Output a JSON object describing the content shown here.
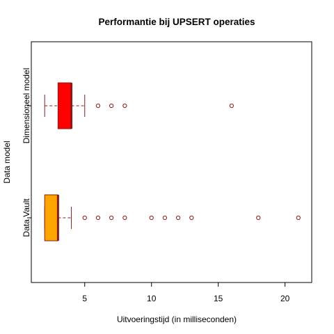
{
  "chart_data": {
    "type": "boxplot",
    "orientation": "horizontal",
    "title": "Performantie bij UPSERT operaties",
    "xlabel": "Uitvoeringstijd (in milliseconden)",
    "ylabel": "Data model",
    "xlim": [
      1,
      22
    ],
    "x_ticks": [
      5,
      10,
      15,
      20
    ],
    "grid": false,
    "series": [
      {
        "name": "Data Vault",
        "box_color": "#FFA500",
        "border_color": "#8B1A1A",
        "min": 2,
        "q1": 2,
        "median": 3,
        "q3": 3,
        "max": 4,
        "outliers": [
          5,
          6,
          7,
          8,
          10,
          11,
          12,
          13,
          18,
          21
        ]
      },
      {
        "name": "Dimensioneel model",
        "box_color": "#FF0000",
        "border_color": "#8B1A1A",
        "min": 2,
        "q1": 3,
        "median": 4,
        "q3": 4,
        "max": 5,
        "outliers": [
          6,
          7,
          8,
          16
        ]
      }
    ]
  }
}
